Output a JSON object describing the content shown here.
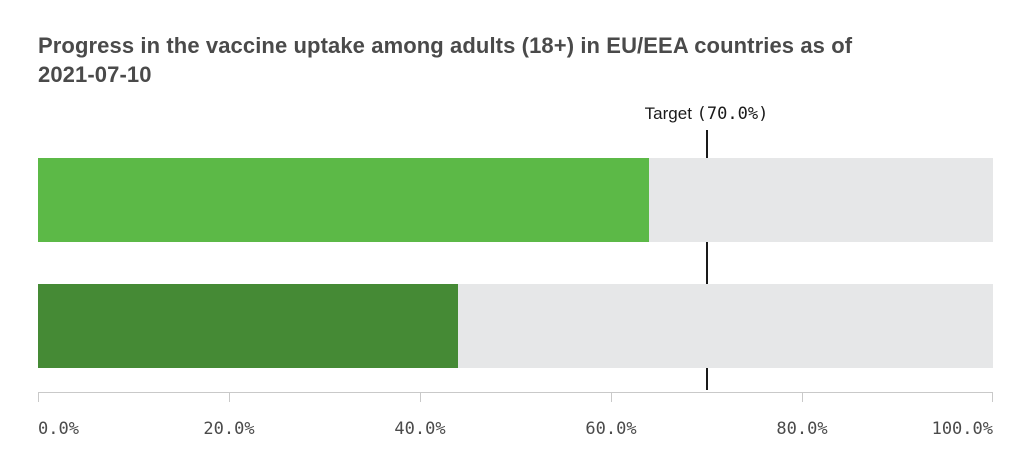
{
  "title": {
    "line1": "Progress in the vaccine uptake among adults (18+) in EU/EEA countries as of",
    "line2": "2021-07-10"
  },
  "target": {
    "prefix": "Target ",
    "value_text": "(70.0%)"
  },
  "axis": {
    "tick_labels": [
      "0.0%",
      "20.0%",
      "40.0%",
      "60.0%",
      "80.0%",
      "100.0%"
    ]
  },
  "colors": {
    "bar_top": "#5cb947",
    "bar_bottom": "#458a35",
    "track": "#e6e7e8",
    "target_line": "#1a1a1a",
    "axis_line": "#c9c9c9",
    "title_text": "#4a4a4a"
  },
  "chart_data": {
    "type": "bar",
    "orientation": "horizontal",
    "title": "Progress in the vaccine uptake among adults (18+) in EU/EEA countries as of 2021-07-10",
    "categories": [
      "top-bar",
      "bottom-bar"
    ],
    "values": [
      64,
      44
    ],
    "value_unit": "%",
    "xlim": [
      0,
      100
    ],
    "x_ticks": [
      0,
      20,
      40,
      60,
      80,
      100
    ],
    "x_tick_labels": [
      "0.0%",
      "20.0%",
      "40.0%",
      "60.0%",
      "80.0%",
      "100.0%"
    ],
    "target": {
      "label": "Target (70.0%)",
      "value": 70.0
    },
    "bar_colors": [
      "#5cb947",
      "#458a35"
    ],
    "track_color": "#e6e7e8",
    "grid": false,
    "legend": false
  }
}
